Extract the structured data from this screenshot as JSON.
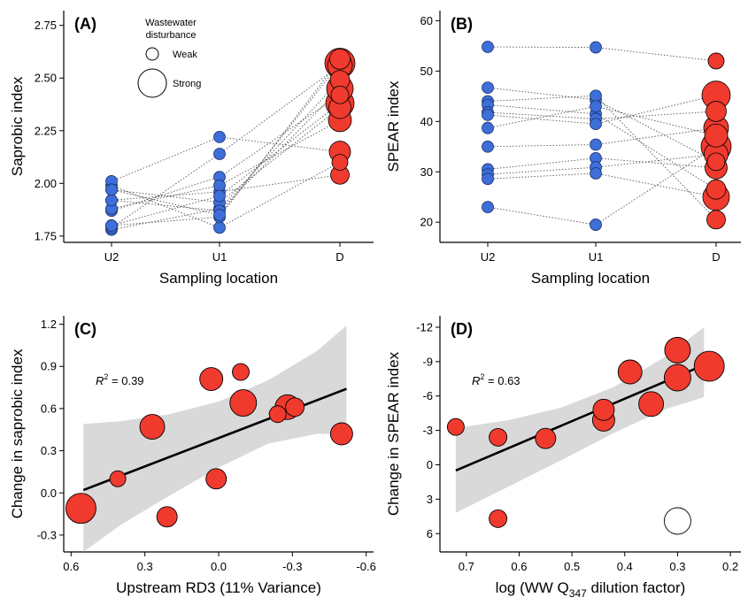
{
  "colors": {
    "upstream": "#3e6fd8",
    "downstream": "#f03a2e",
    "ci_band": "#d9d9d9",
    "fit_line": "#000000"
  },
  "chart_data": [
    {
      "panel": "(A)",
      "type": "scatter",
      "xlabel": "Sampling location",
      "ylabel": "Saprobic index",
      "categories": [
        "U2",
        "U1",
        "D"
      ],
      "ylim": [
        1.72,
        2.82
      ],
      "yticks": [
        "1.75",
        "2.00",
        "2.25",
        "2.50",
        "2.75"
      ],
      "yticks_values": [
        1.75,
        2.0,
        2.25,
        2.5,
        2.75
      ],
      "legend": {
        "title": "Wastewater disturbance",
        "items": [
          "Weak",
          "Strong"
        ]
      },
      "sites": [
        {
          "U2": 1.99,
          "U1": 1.79,
          "D": 2.1,
          "size": 0.2
        },
        {
          "U2": 1.87,
          "U1": 2.03,
          "D": 2.42,
          "size": 0.3
        },
        {
          "U2": 1.92,
          "U1": 1.96,
          "D": 2.04,
          "size": 0.35
        },
        {
          "U2": 1.78,
          "U1": 1.88,
          "D": 2.49,
          "size": 0.4
        },
        {
          "U2": 1.8,
          "U1": 1.84,
          "D": 2.59,
          "size": 0.45
        },
        {
          "U2": 2.01,
          "U1": 2.22,
          "D": 2.15,
          "size": 0.5
        },
        {
          "U2": 1.97,
          "U1": 1.91,
          "D": 2.36,
          "size": 0.55
        },
        {
          "U2": 1.88,
          "U1": 1.99,
          "D": 2.3,
          "size": 0.6
        },
        {
          "U2": 1.79,
          "U1": 2.14,
          "D": 2.56,
          "size": 0.7
        },
        {
          "U2": 1.92,
          "U1": 1.87,
          "D": 2.45,
          "size": 0.8
        },
        {
          "U2": 1.8,
          "U1": 1.94,
          "D": 2.38,
          "size": 0.9
        },
        {
          "U2": 1.97,
          "U1": 1.85,
          "D": 2.57,
          "size": 1.0
        }
      ]
    },
    {
      "panel": "(B)",
      "type": "scatter",
      "xlabel": "Sampling location",
      "ylabel": "SPEAR index",
      "categories": [
        "U2",
        "U1",
        "D"
      ],
      "ylim": [
        16,
        62
      ],
      "yticks": [
        "20",
        "30",
        "40",
        "50",
        "60"
      ],
      "yticks_values": [
        20,
        30,
        40,
        50,
        60
      ],
      "sites": [
        {
          "U2": 54.8,
          "U1": 54.7,
          "D": 52.0,
          "size": 0.2
        },
        {
          "U2": 46.7,
          "U1": 44.3,
          "D": 32.0,
          "size": 0.3
        },
        {
          "U2": 44.0,
          "U1": 45.1,
          "D": 20.5,
          "size": 0.35
        },
        {
          "U2": 43.3,
          "U1": 41.5,
          "D": 26.5,
          "size": 0.4
        },
        {
          "U2": 41.8,
          "U1": 40.5,
          "D": 42.0,
          "size": 0.45
        },
        {
          "U2": 41.3,
          "U1": 39.5,
          "D": 45.2,
          "size": 0.9
        },
        {
          "U2": 38.7,
          "U1": 43.0,
          "D": 37.2,
          "size": 0.6
        },
        {
          "U2": 35.0,
          "U1": 35.4,
          "D": 38.7,
          "size": 0.7
        },
        {
          "U2": 30.5,
          "U1": 32.7,
          "D": 30.8,
          "size": 0.55
        },
        {
          "U2": 29.5,
          "U1": 30.9,
          "D": 33.5,
          "size": 0.65
        },
        {
          "U2": 28.6,
          "U1": 29.7,
          "D": 25.0,
          "size": 0.8
        },
        {
          "U2": 23.0,
          "U1": 19.5,
          "D": 35.0,
          "size": 1.0
        }
      ]
    },
    {
      "panel": "(C)",
      "type": "scatter",
      "xlabel": "Upstream RD3 (11% Variance)",
      "ylabel": "Change in saprobic index",
      "xlim": [
        0.63,
        -0.63
      ],
      "ylim": [
        -0.42,
        1.26
      ],
      "xticks": [
        "0.6",
        "0.3",
        "0.0",
        "-0.3",
        "-0.6"
      ],
      "xticks_values": [
        0.6,
        0.3,
        0.0,
        -0.3,
        -0.6
      ],
      "yticks": [
        "-0.3",
        "0.0",
        "0.3",
        "0.6",
        "0.9",
        "1.2"
      ],
      "yticks_values": [
        -0.3,
        0.0,
        0.3,
        0.6,
        0.9,
        1.2
      ],
      "r2_label": "R",
      "r2_sup": "2",
      "r2_value": " = 0.39",
      "fit": {
        "x1": 0.55,
        "y1": 0.02,
        "x2": -0.52,
        "y2": 0.74
      },
      "points": [
        {
          "x": 0.56,
          "y": -0.11,
          "size": 1.0
        },
        {
          "x": 0.41,
          "y": 0.1,
          "size": 0.2
        },
        {
          "x": 0.27,
          "y": 0.47,
          "size": 0.7
        },
        {
          "x": 0.21,
          "y": -0.17,
          "size": 0.45
        },
        {
          "x": 0.03,
          "y": 0.81,
          "size": 0.6
        },
        {
          "x": 0.01,
          "y": 0.1,
          "size": 0.45
        },
        {
          "x": -0.09,
          "y": 0.86,
          "size": 0.25
        },
        {
          "x": -0.1,
          "y": 0.64,
          "size": 0.8
        },
        {
          "x": -0.24,
          "y": 0.56,
          "size": 0.25
        },
        {
          "x": -0.28,
          "y": 0.61,
          "size": 0.7
        },
        {
          "x": -0.31,
          "y": 0.61,
          "size": 0.35
        },
        {
          "x": -0.5,
          "y": 0.42,
          "size": 0.55
        }
      ],
      "band_upper": [
        [
          0.55,
          0.49
        ],
        [
          0.4,
          0.51
        ],
        [
          0.2,
          0.56
        ],
        [
          0.0,
          0.65
        ],
        [
          -0.2,
          0.8
        ],
        [
          -0.4,
          1.01
        ],
        [
          -0.52,
          1.19
        ]
      ],
      "band_lower": [
        [
          0.55,
          -0.42
        ],
        [
          0.4,
          -0.23
        ],
        [
          0.2,
          -0.02
        ],
        [
          0.0,
          0.18
        ],
        [
          -0.2,
          0.35
        ],
        [
          -0.4,
          0.42
        ],
        [
          -0.52,
          0.42
        ]
      ]
    },
    {
      "panel": "(D)",
      "type": "scatter",
      "xlabel_main": "log (WW Q",
      "xlabel_sub": "347",
      "xlabel_end": " dilution factor)",
      "ylabel": "Change in SPEAR index",
      "xlim": [
        0.75,
        0.18
      ],
      "ylim": [
        7.6,
        -13.0
      ],
      "xticks": [
        "0.7",
        "0.6",
        "0.5",
        "0.4",
        "0.3",
        "0.2"
      ],
      "xticks_values": [
        0.7,
        0.6,
        0.5,
        0.4,
        0.3,
        0.2
      ],
      "yticks": [
        "6",
        "3",
        "0",
        "-3",
        "-6",
        "-9",
        "-12"
      ],
      "yticks_values": [
        6,
        3,
        0,
        -3,
        -6,
        -9,
        -12
      ],
      "r2_label": "R",
      "r2_sup": "2",
      "r2_value": " = 0.63",
      "fit": {
        "x1": 0.72,
        "y1": 0.5,
        "x2": 0.25,
        "y2": -8.7
      },
      "points": [
        {
          "x": 0.72,
          "y": -3.3,
          "size": 0.25,
          "filled": true
        },
        {
          "x": 0.64,
          "y": -2.4,
          "size": 0.3,
          "filled": true
        },
        {
          "x": 0.64,
          "y": 4.7,
          "size": 0.3,
          "filled": true
        },
        {
          "x": 0.55,
          "y": -2.3,
          "size": 0.45,
          "filled": true
        },
        {
          "x": 0.44,
          "y": -3.9,
          "size": 0.55,
          "filled": true
        },
        {
          "x": 0.44,
          "y": -4.8,
          "size": 0.5,
          "filled": true
        },
        {
          "x": 0.39,
          "y": -8.1,
          "size": 0.65,
          "filled": true
        },
        {
          "x": 0.35,
          "y": -5.3,
          "size": 0.7,
          "filled": true
        },
        {
          "x": 0.3,
          "y": -7.6,
          "size": 0.8,
          "filled": true
        },
        {
          "x": 0.3,
          "y": -10.0,
          "size": 0.75,
          "filled": true
        },
        {
          "x": 0.24,
          "y": -8.6,
          "size": 1.0,
          "filled": true
        },
        {
          "x": 0.3,
          "y": 4.9,
          "size": 0.8,
          "filled": false
        }
      ],
      "band_upper": [
        [
          0.72,
          -3.2
        ],
        [
          0.62,
          -3.9
        ],
        [
          0.52,
          -5.0
        ],
        [
          0.42,
          -6.8
        ],
        [
          0.32,
          -9.5
        ],
        [
          0.25,
          -12.0
        ]
      ],
      "band_lower": [
        [
          0.72,
          4.2
        ],
        [
          0.62,
          1.9
        ],
        [
          0.52,
          -0.4
        ],
        [
          0.42,
          -2.8
        ],
        [
          0.32,
          -4.9
        ],
        [
          0.25,
          -5.9
        ]
      ]
    }
  ]
}
